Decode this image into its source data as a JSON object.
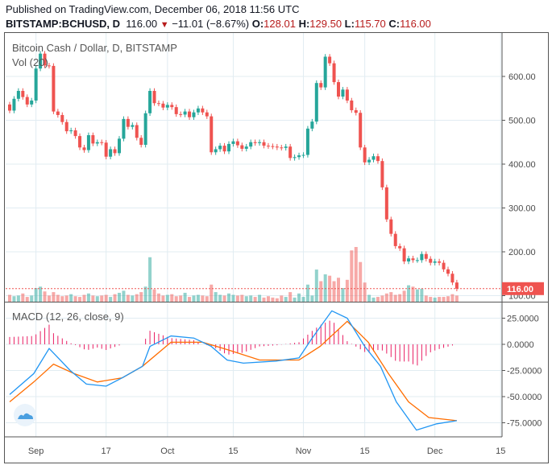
{
  "header": {
    "published": "Published on TradingView.com, December 06, 2018 11:56 UTC",
    "symbol": "BITSTAMP:BCHUSD, D",
    "last": "116.00",
    "change": "−11.01 (−8.67%)",
    "o_label": "O:",
    "o": "128.01",
    "h_label": "H:",
    "h": "129.50",
    "l_label": "L:",
    "l": "115.70",
    "c_label": "C:",
    "c": "116.00"
  },
  "legend": {
    "title": "Bitcoin Cash / Dollar, D, BITSTAMP",
    "vol": "Vol (20)",
    "macd": "MACD (12, 26, close, 9)"
  },
  "colors": {
    "up": "#26a69a",
    "down": "#ef5350",
    "macd": "#2196f3",
    "signal": "#ff6d00",
    "hist": "#e91e63",
    "grid": "#e1ecf2"
  },
  "chart_data": {
    "type": "candlestick",
    "first_open": 536,
    "closes": [
      522,
      549,
      567,
      553,
      536,
      545,
      618,
      652,
      625,
      624,
      520,
      512,
      496,
      475,
      477,
      464,
      438,
      432,
      466,
      447,
      450,
      449,
      417,
      434,
      425,
      458,
      503,
      485,
      489,
      460,
      444,
      516,
      567,
      539,
      538,
      529,
      535,
      530,
      514,
      513,
      520,
      507,
      518,
      527,
      518,
      509,
      427,
      434,
      442,
      429,
      446,
      452,
      443,
      435,
      440,
      450,
      448,
      450,
      442,
      441,
      440,
      438,
      437,
      440,
      414,
      416,
      420,
      421,
      481,
      497,
      585,
      575,
      645,
      630,
      587,
      554,
      570,
      545,
      523,
      517,
      438,
      404,
      410,
      418,
      407,
      347,
      274,
      241,
      213,
      208,
      178,
      185,
      181,
      181,
      195,
      184,
      175,
      178,
      175,
      160,
      150,
      130,
      116
    ],
    "volumes": [
      10,
      8,
      9,
      12,
      7,
      9,
      20,
      22,
      15,
      9,
      14,
      10,
      8,
      9,
      11,
      8,
      7,
      10,
      12,
      9,
      8,
      9,
      10,
      7,
      11,
      13,
      16,
      10,
      9,
      11,
      14,
      22,
      65,
      18,
      12,
      9,
      10,
      11,
      8,
      9,
      13,
      7,
      9,
      10,
      9,
      8,
      25,
      14,
      10,
      9,
      12,
      10,
      9,
      10,
      8,
      9,
      7,
      10,
      6,
      8,
      6,
      5,
      9,
      7,
      14,
      6,
      12,
      7,
      25,
      9,
      47,
      30,
      40,
      38,
      30,
      35,
      20,
      32,
      75,
      80,
      58,
      28,
      10,
      6,
      7,
      9,
      12,
      14,
      10,
      11,
      16,
      24,
      22,
      18,
      19,
      9,
      7,
      6,
      7,
      7,
      8,
      11,
      9
    ],
    "price_ticks": [
      "600.00",
      "500.00",
      "400.00",
      "300.00",
      "200.00",
      "100.00"
    ],
    "price_tick_values": [
      600,
      500,
      400,
      300,
      200,
      100
    ],
    "price_range": [
      90,
      705
    ],
    "last_price_label": "116.00",
    "last_price": 116,
    "x_labels": [
      "Sep",
      "17",
      "Oct",
      "15",
      "Nov",
      "15",
      "Dec",
      "15"
    ],
    "x_label_days": [
      6,
      22,
      36,
      51,
      67,
      81,
      97,
      112
    ],
    "macd_ticks": [
      "25.0000",
      "0.0000",
      "-25.0000",
      "-50.0000",
      "-75.0000"
    ],
    "macd_tick_values": [
      25,
      0,
      -25,
      -50,
      -75
    ],
    "macd_range": [
      -86,
      50
    ],
    "macd": [
      [
        0,
        -48
      ],
      [
        5.5,
        -28
      ],
      [
        9,
        -4
      ],
      [
        13.8,
        -25
      ],
      [
        17.5,
        -38
      ],
      [
        22,
        -40
      ],
      [
        25.7,
        -32
      ],
      [
        30.3,
        -21
      ],
      [
        32,
        -2
      ],
      [
        36.8,
        8
      ],
      [
        42,
        6
      ],
      [
        46,
        -2
      ],
      [
        49.6,
        -15
      ],
      [
        53.3,
        -18
      ],
      [
        60.7,
        -16
      ],
      [
        66,
        -13
      ],
      [
        69,
        6
      ],
      [
        73.5,
        32
      ],
      [
        77,
        25
      ],
      [
        81,
        -2
      ],
      [
        84.6,
        -21
      ],
      [
        88.2,
        -55
      ],
      [
        92.8,
        -82
      ],
      [
        97.4,
        -76
      ],
      [
        102,
        -73
      ]
    ],
    "signal": [
      [
        0,
        -55
      ],
      [
        5.5,
        -36
      ],
      [
        10,
        -19
      ],
      [
        14.7,
        -28
      ],
      [
        20,
        -36
      ],
      [
        25.7,
        -32
      ],
      [
        30.3,
        -21
      ],
      [
        36.8,
        2
      ],
      [
        44,
        2
      ],
      [
        49.6,
        -5
      ],
      [
        57,
        -15
      ],
      [
        66,
        -15
      ],
      [
        70.8,
        -2
      ],
      [
        77,
        22
      ],
      [
        81.8,
        2
      ],
      [
        86.4,
        -28
      ],
      [
        91,
        -55
      ],
      [
        95.6,
        -70
      ],
      [
        102,
        -73
      ]
    ]
  }
}
